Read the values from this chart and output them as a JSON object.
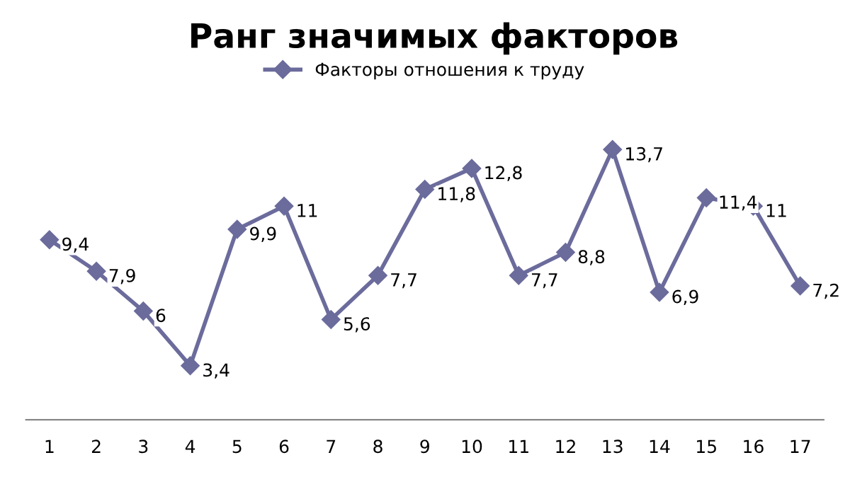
{
  "chart_data": {
    "type": "line",
    "title": "Ранг значимых факторов",
    "categories": [
      "1",
      "2",
      "3",
      "4",
      "5",
      "6",
      "7",
      "8",
      "9",
      "10",
      "11",
      "12",
      "13",
      "14",
      "15",
      "16",
      "17"
    ],
    "series": [
      {
        "name": "Факторы отношения к труду",
        "color": "#6b6b9c",
        "values": [
          9.4,
          7.9,
          6,
          3.4,
          9.9,
          11,
          5.6,
          7.7,
          11.8,
          12.8,
          7.7,
          8.8,
          13.7,
          6.9,
          11.4,
          11,
          7.2
        ],
        "value_labels": [
          "9,4",
          "7,9",
          "6",
          "3,4",
          "9,9",
          "11",
          "5,6",
          "7,7",
          "11,8",
          "12,8",
          "7,7",
          "8,8",
          "13,7",
          "6,9",
          "11,4",
          "11",
          "7,2"
        ]
      }
    ],
    "tick_labels": "x",
    "legend": "top",
    "marker": "diamond",
    "line_style": "solid",
    "grid": false
  }
}
